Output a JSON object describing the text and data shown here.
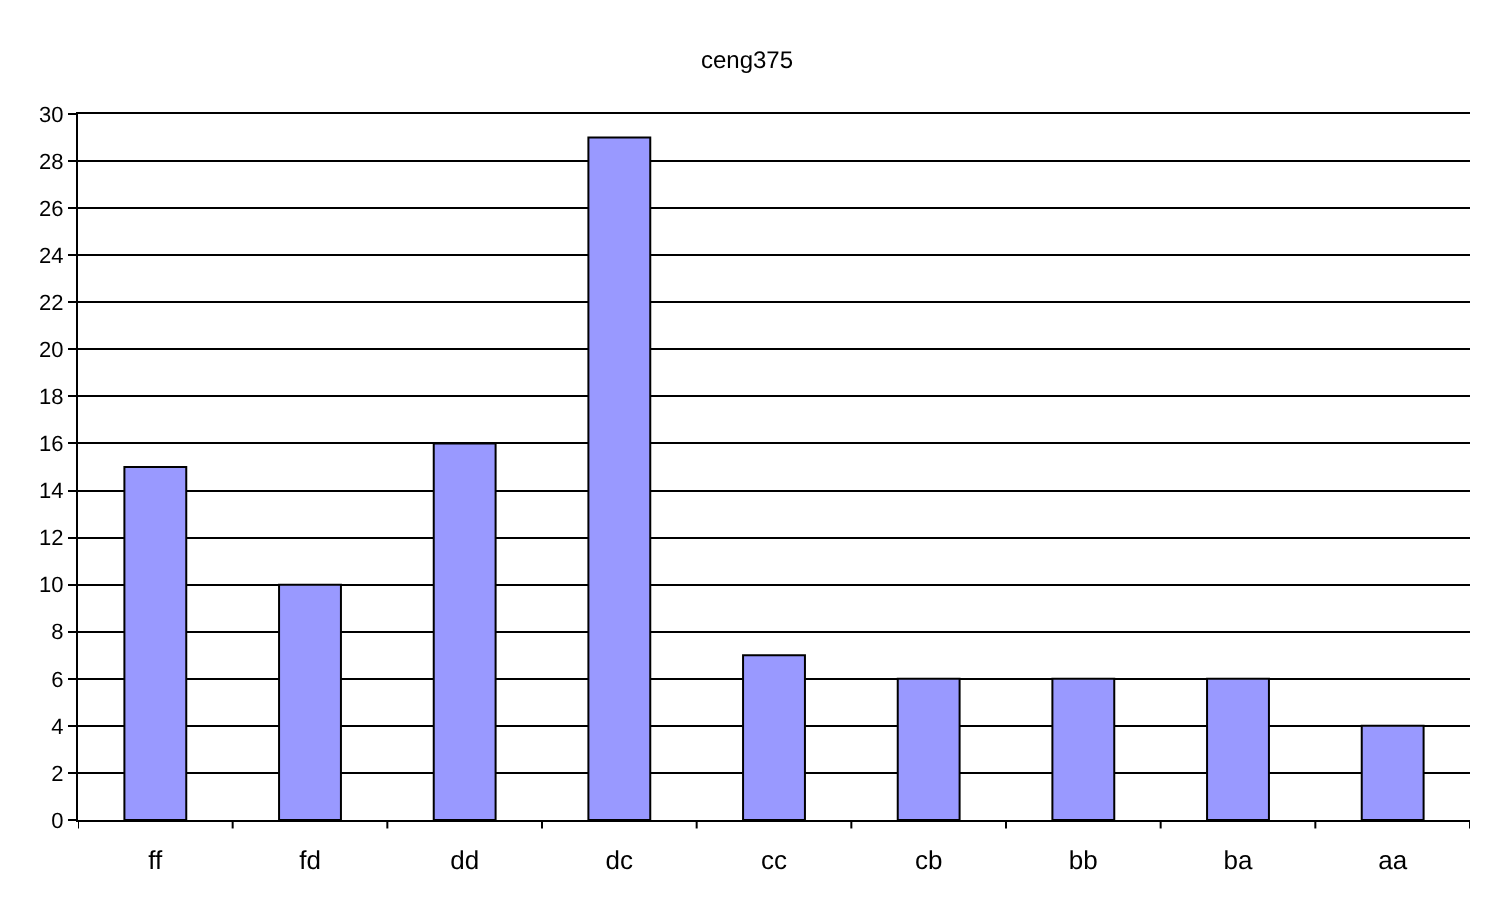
{
  "chart_data": {
    "type": "bar",
    "title": "ceng375",
    "categories": [
      "ff",
      "fd",
      "dd",
      "dc",
      "cc",
      "cb",
      "bb",
      "ba",
      "aa"
    ],
    "values": [
      15,
      10,
      16,
      29,
      7,
      6,
      6,
      6,
      4
    ],
    "color": "#9999ff",
    "ylim": [
      0,
      30
    ],
    "yticks": [
      0,
      2,
      4,
      6,
      8,
      10,
      12,
      14,
      16,
      18,
      20,
      22,
      24,
      26,
      28,
      30
    ],
    "grid": "y",
    "legend": false
  }
}
